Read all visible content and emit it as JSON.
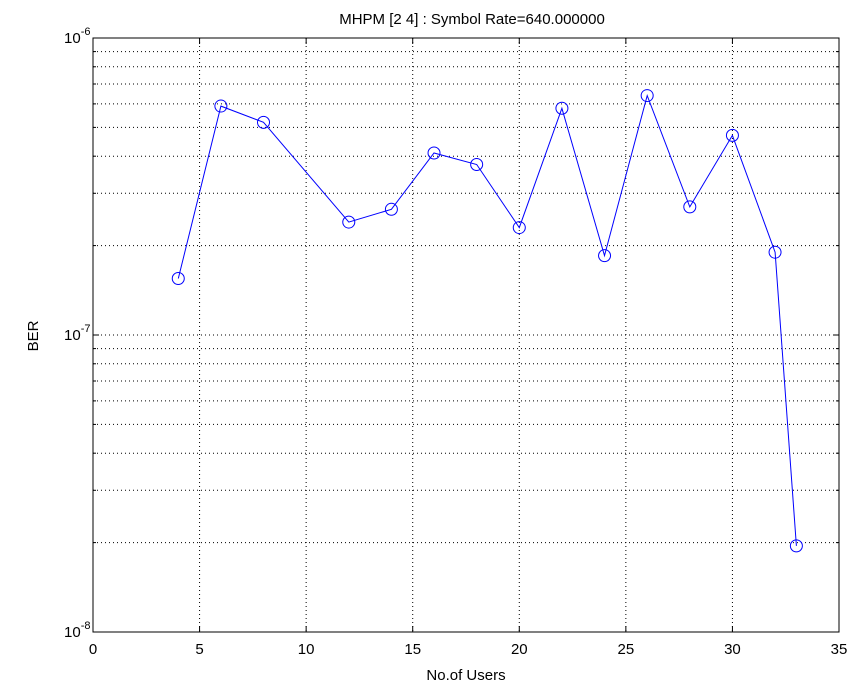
{
  "chart_data": {
    "type": "line",
    "title": "MHPM [2 4] : Symbol Rate=640.000000",
    "xlabel": "No.of Users",
    "ylabel": "BER",
    "xlim": [
      0,
      35
    ],
    "ylim": [
      1e-08,
      1e-06
    ],
    "yscale": "log",
    "grid": true,
    "xticks": [
      0,
      5,
      10,
      15,
      20,
      25,
      30,
      35
    ],
    "x_tick_labels": [
      "0",
      "5",
      "10",
      "15",
      "20",
      "25",
      "30",
      "35"
    ],
    "y_tick_labels": [
      {
        "base": "10",
        "exp": "-8"
      },
      {
        "base": "10",
        "exp": "-7"
      },
      {
        "base": "10",
        "exp": "-6"
      }
    ],
    "series": [
      {
        "color": "#0000ff",
        "marker": "circle",
        "x": [
          4,
          6,
          8,
          12,
          14,
          16,
          18,
          20,
          22,
          24,
          26,
          28,
          30,
          32,
          33
        ],
        "y": [
          1.55e-07,
          5.9e-07,
          5.2e-07,
          2.4e-07,
          2.65e-07,
          4.1e-07,
          3.75e-07,
          2.3e-07,
          5.8e-07,
          1.85e-07,
          6.4e-07,
          2.7e-07,
          4.7e-07,
          1.9e-07,
          1.95e-08
        ]
      }
    ]
  }
}
